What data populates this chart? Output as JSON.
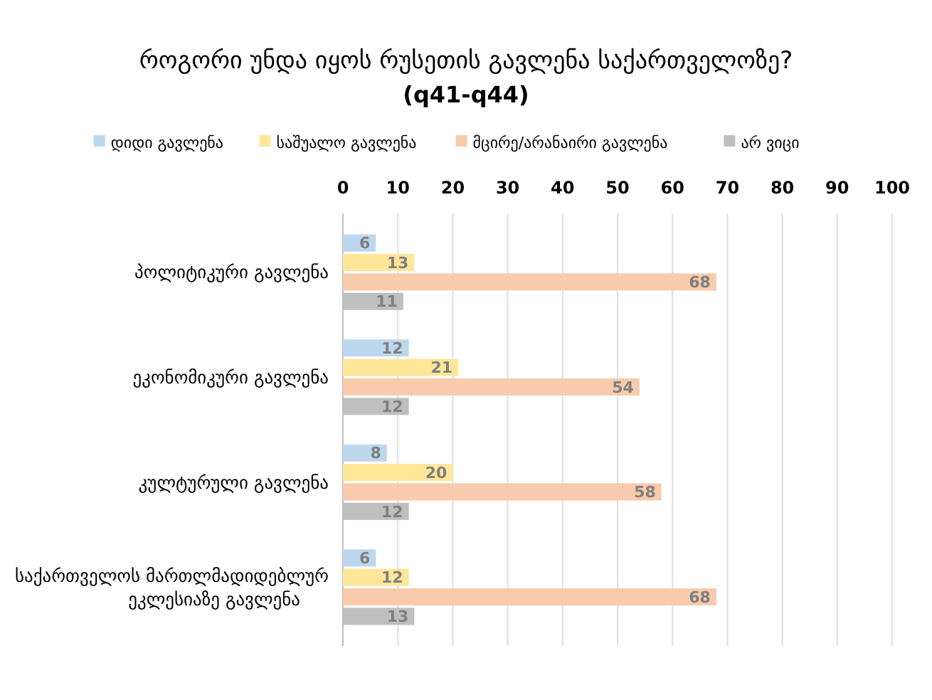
{
  "chart_data": {
    "type": "bar",
    "orientation": "horizontal",
    "title": "როგორი უნდა იყოს რუსეთის გავლენა საქართველოზე?",
    "subtitle": "(q41-q44)",
    "categories": [
      "პოლიტიკური გავლენა",
      "ეკონომიკური გავლენა",
      "კულტურული გავლენა",
      "საქართველოს მართლმადიდებლურ ეკლესიაზე გავლენა"
    ],
    "series": [
      {
        "name": "დიდი გავლენა",
        "color": "#bdd7ee",
        "values": [
          6,
          12,
          8,
          6
        ]
      },
      {
        "name": "საშუალო გავლენა",
        "color": "#ffe699",
        "values": [
          13,
          21,
          20,
          12
        ]
      },
      {
        "name": "მცირე/არანაირი გავლენა",
        "color": "#f8cbad",
        "values": [
          68,
          54,
          58,
          68
        ]
      },
      {
        "name": "არ ვიცი",
        "color": "#bfbfbf",
        "values": [
          11,
          12,
          12,
          13
        ]
      }
    ],
    "xlim": [
      0,
      100
    ],
    "xticks": [
      0,
      10,
      20,
      30,
      40,
      50,
      60,
      70,
      80,
      90,
      100
    ],
    "grid": "x",
    "legend": "top",
    "data_labels": true
  }
}
